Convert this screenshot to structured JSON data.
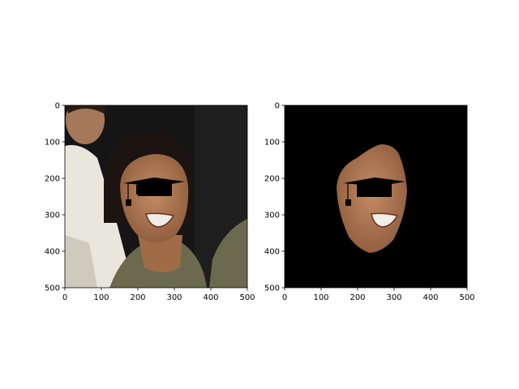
{
  "panels": [
    {
      "id": "original-photo",
      "xlim": [
        0,
        500
      ],
      "ylim": [
        0,
        500
      ],
      "x_ticks": [
        "0",
        "100",
        "200",
        "300",
        "400",
        "500"
      ],
      "y_ticks": [
        "0",
        "100",
        "200",
        "300",
        "400",
        "500"
      ]
    },
    {
      "id": "masked-face",
      "xlim": [
        0,
        500
      ],
      "ylim": [
        0,
        500
      ],
      "x_ticks": [
        "0",
        "100",
        "200",
        "300",
        "400",
        "500"
      ],
      "y_ticks": [
        "0",
        "100",
        "200",
        "300",
        "400",
        "500"
      ]
    }
  ],
  "colors": {
    "background_dark": "#151515",
    "skin": "#b07a55",
    "shirt_olive": "#6b6a4e",
    "shirt_white": "#e9e6dc",
    "mask_black": "#000000"
  },
  "icons": {
    "overlay": "graduation-cap-icon"
  }
}
